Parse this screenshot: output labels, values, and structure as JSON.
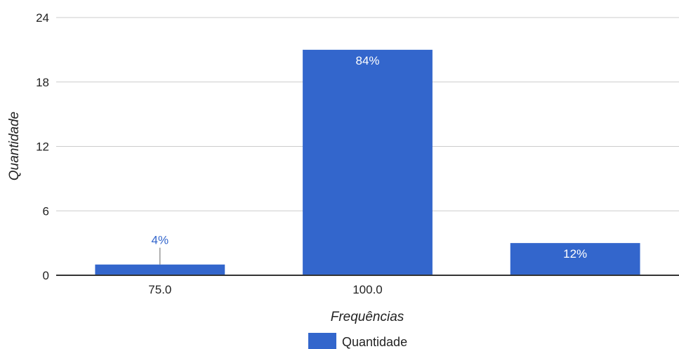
{
  "chart_data": {
    "type": "bar",
    "categories": [
      "75.0",
      "100.0",
      ""
    ],
    "values": [
      1,
      21,
      3
    ],
    "data_labels": [
      "4%",
      "84%",
      "12%"
    ],
    "series": [
      {
        "name": "Quantidade",
        "values": [
          1,
          21,
          3
        ]
      }
    ],
    "title": "",
    "xlabel": "Frequências",
    "ylabel": "Quantidade",
    "ylim": [
      0,
      24
    ],
    "yticks": [
      "0",
      "6",
      "12",
      "18",
      "24"
    ],
    "grid": true,
    "legend": "bottom",
    "bar_color": "#3366cc",
    "grid_color": "#cccccc",
    "axis_color": "#333333",
    "outside_label_color": "#3366cc",
    "inside_label_color": "#ffffff"
  }
}
